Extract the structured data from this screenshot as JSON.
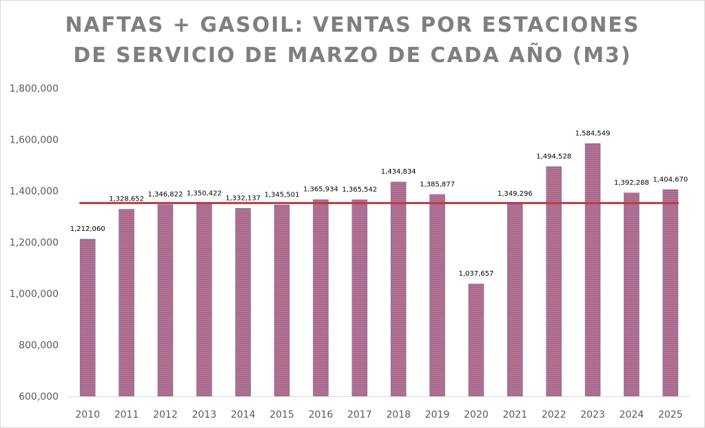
{
  "chart_data": {
    "type": "bar",
    "title_lines": [
      "NAFTAS + GASOIL: VENTAS POR ESTACIONES",
      "DE SERVICIO DE MARZO DE CADA AÑO (M3)"
    ],
    "categories": [
      "2010",
      "2011",
      "2012",
      "2013",
      "2014",
      "2015",
      "2016",
      "2017",
      "2018",
      "2019",
      "2020",
      "2021",
      "2022",
      "2023",
      "2024",
      "2025"
    ],
    "values": [
      1212060,
      1328652,
      1346822,
      1350422,
      1332137,
      1345501,
      1365934,
      1365542,
      1434834,
      1385877,
      1037657,
      1349296,
      1494528,
      1584549,
      1392288,
      1404670
    ],
    "value_labels": [
      "1,212,060",
      "1,328,652",
      "1,346,822",
      "1,350,422",
      "1,332,137",
      "1,345,501",
      "1,365,934",
      "1,365,542",
      "1,434,834",
      "1,385,877",
      "1,037,657",
      "1,349,296",
      "1,494,528",
      "1,584,549",
      "1,392,288",
      "1,404,670"
    ],
    "average_line_value": 1352800,
    "ylim": [
      600000,
      1800000
    ],
    "yticks": [
      600000,
      800000,
      1000000,
      1200000,
      1400000,
      1600000,
      1800000
    ],
    "ytick_labels": [
      "600,000",
      "800,000",
      "1,000,000",
      "1,200,000",
      "1,400,000",
      "1,600,000",
      "1,800,000"
    ],
    "xlabel": "",
    "ylabel": "",
    "grid": false,
    "legend": "none",
    "colors": {
      "bar_stripe_a": "#e06a78",
      "bar_stripe_b": "#7c72a8",
      "bar_edge": "#7b6fa6",
      "average_line": "#c0393b",
      "axis_line": "#d9d9d9",
      "title_text": "#7f7f7f",
      "tick_text": "#595959"
    }
  }
}
